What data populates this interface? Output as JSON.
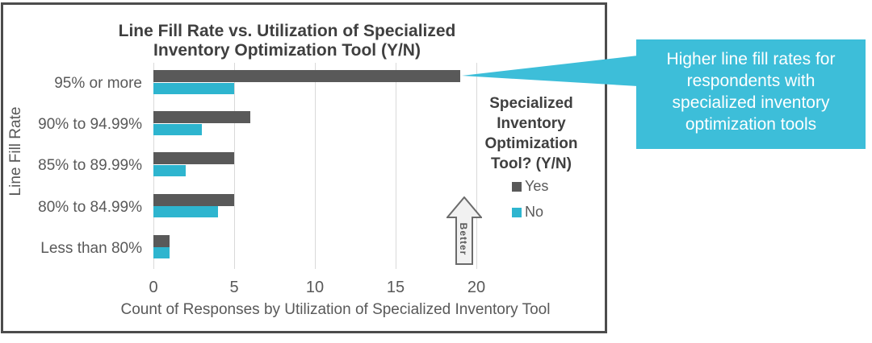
{
  "chart_data": {
    "type": "bar",
    "orientation": "horizontal-grouped",
    "title": "Line Fill Rate vs. Utilization of Specialized Inventory Optimization Tool (Y/N)",
    "title_lines": [
      "Line Fill Rate vs. Utilization of Specialized",
      "Inventory Optimization Tool (Y/N)"
    ],
    "categories": [
      "95% or more",
      "90% to 94.99%",
      "85% to 89.99%",
      "80% to 84.99%",
      "Less than 80%"
    ],
    "series": [
      {
        "name": "Yes",
        "color": "#595959",
        "values": [
          19,
          6,
          5,
          5,
          1
        ]
      },
      {
        "name": "No",
        "color": "#2eb5cf",
        "values": [
          5,
          3,
          2,
          4,
          1
        ]
      }
    ],
    "xlabel": "Count of Responses by Utilization of Specialized Inventory Tool",
    "ylabel": "Line Fill Rate",
    "xlim": [
      0,
      20
    ],
    "xticks": [
      "0",
      "5",
      "10",
      "15",
      "20"
    ],
    "grid": "vertical-major",
    "legend": {
      "position": "inside-right",
      "title_lines": [
        "Specialized",
        "Inventory",
        "Optimization",
        "Tool? (Y/N)"
      ],
      "items": [
        {
          "label": "Yes",
          "color": "#595959"
        },
        {
          "label": "No",
          "color": "#2eb5cf"
        }
      ]
    },
    "annotations": [
      {
        "type": "block-arrow-up",
        "label": "Better"
      }
    ]
  },
  "callout": {
    "text": "Higher line fill rates for respondents with specialized inventory optimization tools",
    "lines": [
      "Higher line fill rates for",
      "respondents with",
      "specialized inventory",
      "optimization tools"
    ],
    "fill": "#3dbed9",
    "text_color": "#ffffff"
  },
  "colors": {
    "chart_border": "#4c4c4c",
    "title_text": "#3f3f3f",
    "axis_text": "#595959",
    "gridline": "#d9d9d9",
    "arrow_fill": "#f1f1f1",
    "arrow_border": "#6b6b6b",
    "background": "#ffffff"
  }
}
